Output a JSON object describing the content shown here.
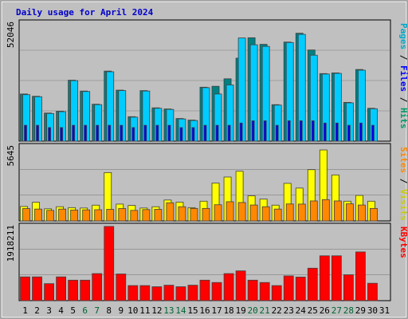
{
  "chart_data": {
    "type": "bar",
    "title": "Daily usage for April 2024",
    "days": [
      "1",
      "2",
      "3",
      "4",
      "5",
      "6",
      "7",
      "8",
      "9",
      "10",
      "11",
      "12",
      "13",
      "14",
      "15",
      "16",
      "17",
      "18",
      "19",
      "20",
      "21",
      "22",
      "23",
      "24",
      "25",
      "26",
      "27",
      "28",
      "29",
      "30",
      "31"
    ],
    "weekend_days": [
      "6",
      "7",
      "13",
      "14",
      "20",
      "21",
      "27",
      "28"
    ],
    "day_colors": {
      "weekday": "#000000",
      "weekend": "#006633"
    },
    "panels": [
      {
        "id": "hits",
        "ymax_label": "52046",
        "ymax": 52046,
        "side_label_parts": [
          {
            "text": "Pages",
            "color": "#00aacc"
          },
          {
            "text": " / ",
            "color": "#000000"
          },
          {
            "text": "Files",
            "color": "#0000ff"
          },
          {
            "text": " / ",
            "color": "#000000"
          },
          {
            "text": "Hits",
            "color": "#009966"
          }
        ],
        "series": [
          {
            "key": "hits",
            "color": "#008080",
            "values": [
              20800,
              19800,
              12400,
              13200,
              26900,
              22100,
              16300,
              30900,
              22500,
              10800,
              22300,
              14700,
              14200,
              10000,
              9300,
              23800,
              24200,
              27500,
              36600,
              45600,
              42700,
              16100,
              43700,
              47600,
              40200,
              29800,
              30100,
              17100,
              31600,
              14500,
              0
            ]
          },
          {
            "key": "files",
            "color": "#0000ff",
            "values": [
              7000,
              7000,
              6000,
              6000,
              7000,
              7000,
              7000,
              7000,
              7000,
              6000,
              7000,
              7000,
              7000,
              6000,
              6000,
              7000,
              7000,
              7000,
              8000,
              9000,
              9000,
              7000,
              9000,
              9000,
              9000,
              8000,
              8000,
              7000,
              8000,
              7000,
              0
            ]
          },
          {
            "key": "pages",
            "color": "#00ccff",
            "values": [
              20500,
              19600,
              12200,
              13000,
              26700,
              21900,
              16100,
              30600,
              22300,
              10600,
              22100,
              14500,
              14000,
              9800,
              9100,
              23600,
              20800,
              24800,
              45500,
              42500,
              41800,
              15900,
              43500,
              47100,
              37900,
              29600,
              29900,
              16900,
              31300,
              14300,
              0
            ]
          }
        ]
      },
      {
        "id": "visits",
        "ymax_label": "5645",
        "ymax": 5645,
        "side_label_parts": [
          {
            "text": "Sites",
            "color": "#ff8800"
          },
          {
            "text": " / ",
            "color": "#000000"
          },
          {
            "text": "Visits",
            "color": "#cccc00"
          }
        ],
        "series": [
          {
            "key": "visits",
            "color": "#ffff00",
            "values": [
              1100,
              1420,
              920,
              1080,
              1010,
              980,
              1200,
              3680,
              1280,
              1180,
              980,
              1080,
              1590,
              1430,
              1010,
              1500,
              2880,
              3340,
              3780,
              1910,
              1660,
              1200,
              2860,
              2500,
              3900,
              5400,
              3500,
              1500,
              1940,
              1500,
              0
            ]
          },
          {
            "key": "sites",
            "color": "#ff8800",
            "values": [
              940,
              900,
              800,
              900,
              830,
              840,
              850,
              880,
              940,
              800,
              860,
              880,
              1380,
              1080,
              950,
              950,
              1230,
              1460,
              1400,
              1210,
              1080,
              900,
              1290,
              1280,
              1520,
              1620,
              1520,
              1300,
              1210,
              950,
              0
            ]
          }
        ]
      },
      {
        "id": "kbytes",
        "ymax_label": "1918211",
        "ymax": 1918211,
        "side_label_parts": [
          {
            "text": "KBytes",
            "color": "#ff0000"
          }
        ],
        "series": [
          {
            "key": "kbytes",
            "color": "#ff0000",
            "values": [
              615000,
              615000,
              440000,
              615000,
              530000,
              530000,
              700000,
              1920000,
              690000,
              390000,
              390000,
              360000,
              400000,
              360000,
              400000,
              530000,
              470000,
              700000,
              770000,
              530000,
              470000,
              390000,
              640000,
              610000,
              840000,
              1160000,
              1160000,
              670000,
              1260000,
              450000,
              0
            ]
          }
        ]
      }
    ]
  }
}
